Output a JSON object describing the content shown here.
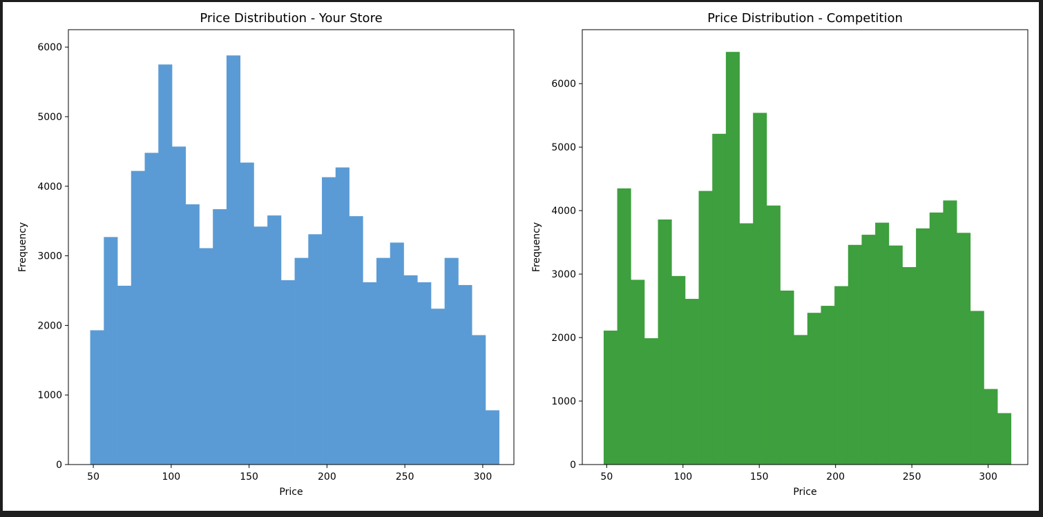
{
  "chart_data": [
    {
      "type": "bar",
      "title": "Price Distribution - Your Store",
      "xlabel": "Price",
      "ylabel": "Frequency",
      "color": "#5b9bd5",
      "xlim": [
        34,
        320
      ],
      "ylim": [
        0,
        6250
      ],
      "xticks": [
        50,
        100,
        150,
        200,
        250,
        300
      ],
      "yticks": [
        0,
        1000,
        2000,
        3000,
        4000,
        5000,
        6000
      ],
      "bin_start": 48,
      "bin_width": 8.75,
      "values": [
        1930,
        3270,
        2570,
        4220,
        4480,
        5750,
        4570,
        3740,
        3110,
        3670,
        5880,
        4340,
        3420,
        3580,
        2650,
        2970,
        3310,
        4130,
        4270,
        3570,
        2620,
        2970,
        3190,
        2720,
        2620,
        2240,
        2970,
        2580,
        1860,
        780
      ],
      "grid": false
    },
    {
      "type": "bar",
      "title": "Price Distribution - Competition",
      "xlabel": "Price",
      "ylabel": "Frequency",
      "color": "#3d9f3d",
      "xlim": [
        34,
        326
      ],
      "ylim": [
        0,
        6850
      ],
      "xticks": [
        50,
        100,
        150,
        200,
        250,
        300
      ],
      "yticks": [
        0,
        1000,
        2000,
        3000,
        4000,
        5000,
        6000
      ],
      "bin_start": 48,
      "bin_width": 8.9,
      "values": [
        2110,
        4350,
        2910,
        1990,
        3860,
        2970,
        2610,
        4310,
        5210,
        6500,
        3800,
        5540,
        4080,
        2740,
        2040,
        2390,
        2500,
        2810,
        3460,
        3620,
        3810,
        3450,
        3110,
        3720,
        3970,
        4160,
        3650,
        2420,
        1190,
        810
      ],
      "grid": false
    }
  ]
}
